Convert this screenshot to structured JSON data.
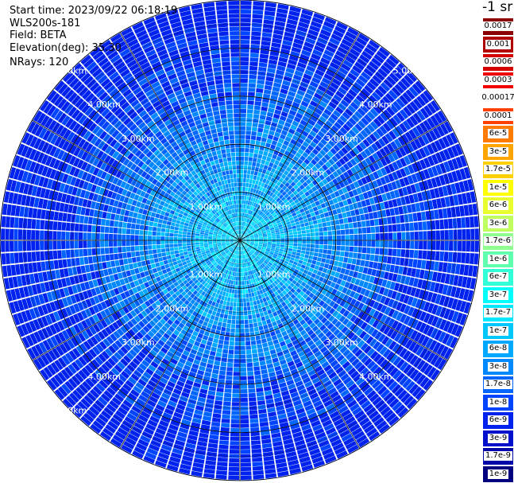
{
  "header": {
    "start_time": "Start time: 2023/09/22 06:18:19",
    "device": "WLS200s-181",
    "field": "Field: BETA",
    "elevation": "Elevation(deg): 35.30",
    "nrays": "NRays: 120"
  },
  "chart_data": {
    "type": "heatmap",
    "projection": "polar PPI scan",
    "field": "BETA",
    "elevation_deg": 35.3,
    "n_rays": 120,
    "range_rings_km": [
      1.0,
      2.0,
      3.0,
      4.0,
      5.0
    ],
    "ring_labels": [
      "1.00km",
      "2.00km",
      "3.00km",
      "4.00km",
      "5.00km"
    ],
    "max_range_km": 5.0,
    "spokes_deg": [
      0,
      30,
      60,
      90,
      120,
      150,
      180,
      210,
      240,
      270,
      300,
      330
    ],
    "grid": true,
    "colorbar": {
      "unit": "-1 sr",
      "placement": "right",
      "labels": [
        "0.0017",
        "0.001",
        "0.0006",
        "0.0003",
        "0.00017",
        "0.0001",
        "6e-5",
        "3e-5",
        "1.7e-5",
        "1e-5",
        "6e-6",
        "3e-6",
        "1.7e-6",
        "1e-6",
        "6e-7",
        "3e-7",
        "1.7e-7",
        "1e-7",
        "6e-8",
        "3e-8",
        "1.7e-8",
        "1e-8",
        "6e-9",
        "3e-9",
        "1.7e-9",
        "1e-9"
      ],
      "colors": [
        "#8b0000",
        "#b00000",
        "#d40000",
        "#f00000",
        "#ffffff",
        "#ff4000",
        "#ff7a00",
        "#ffa500",
        "#ffd000",
        "#ffff00",
        "#e8ff30",
        "#c0ff60",
        "#90ff90",
        "#60ffb0",
        "#30ffd8",
        "#00ffff",
        "#00e8ff",
        "#00c8ff",
        "#00a8ff",
        "#0088ff",
        "#0066ff",
        "#0044ff",
        "#0022ee",
        "#0010cc",
        "#0008aa",
        "#000080"
      ]
    }
  },
  "colors": {
    "ring_line": "#000000",
    "label_text": "#ffffff",
    "gap": "#ffffff"
  }
}
